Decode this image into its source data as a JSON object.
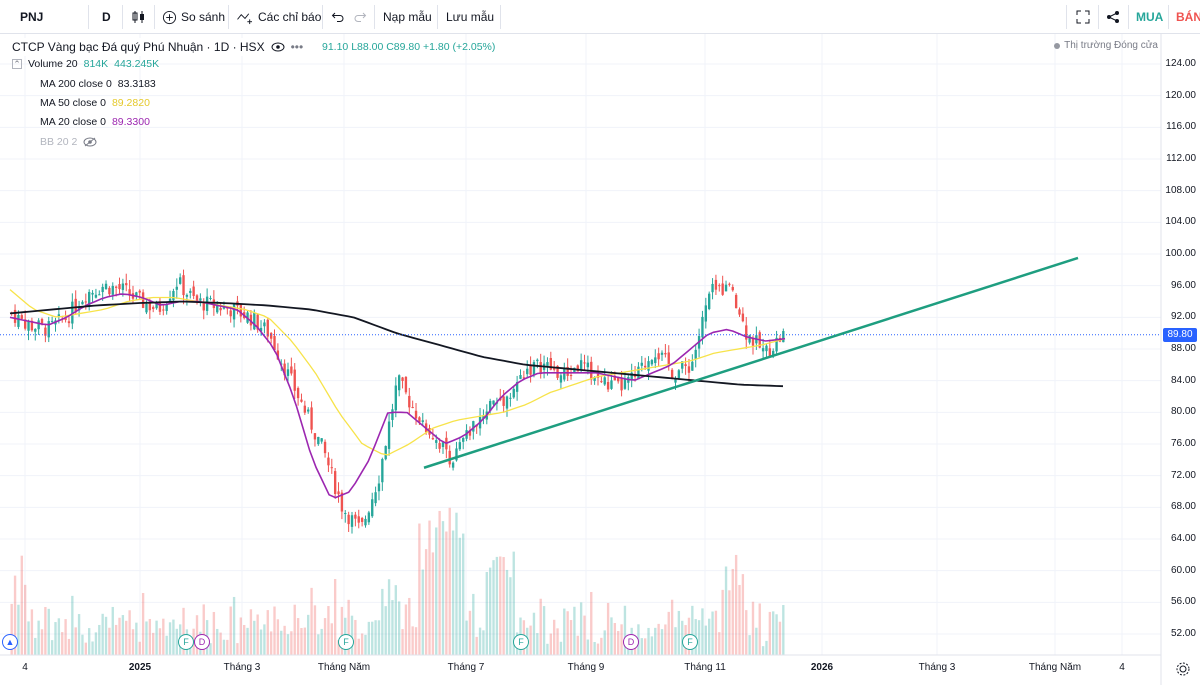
{
  "toolbar": {
    "symbol": "PNJ",
    "interval": "D",
    "compare_label": "So sánh",
    "indicators_label": "Các chỉ báo",
    "load_template_label": "Nạp mẫu",
    "save_template_label": "Lưu mẫu",
    "buy_label": "MUA",
    "sell_label": "BÁN"
  },
  "header": {
    "title": "CTCP Vàng bạc Đá quý Phú Nhuận · 1D · HSX",
    "ohlc": "91.10  L88.00  C89.80  +1.80 (+2.05%)",
    "market_status": "Thị trường Đóng cửa"
  },
  "legend": [
    {
      "label": "Volume 20",
      "value1": "814K",
      "value2": "443.245K",
      "color": "#26a69a"
    },
    {
      "label": "MA 200 close 0",
      "value1": "83.3183",
      "value2": "",
      "color": "#131722"
    },
    {
      "label": "MA 50 close 0",
      "value1": "89.2820",
      "value2": "",
      "color": "#f7e34a"
    },
    {
      "label": "MA 20 close 0",
      "value1": "89.3300",
      "value2": "",
      "color": "#9c27b0"
    },
    {
      "label": "BB 20 2",
      "value1": "",
      "value2": "",
      "color": "#b2b5be"
    }
  ],
  "colors": {
    "up": "#26a69a",
    "down": "#ef5350",
    "ma200": "#131722",
    "ma50": "#f7e34a",
    "ma20": "#9c27b0",
    "trendline": "#1e9e80",
    "price_line": "#2962ff"
  },
  "chart_data": {
    "type": "candlestick",
    "symbol": "PNJ",
    "last_price": "89.80",
    "yaxis_ticks": [
      "124.00",
      "120.00",
      "116.00",
      "112.00",
      "108.00",
      "104.00",
      "100.00",
      "96.00",
      "92.00",
      "88.00",
      "84.00",
      "80.00",
      "76.00",
      "72.00",
      "68.00",
      "64.00",
      "60.00",
      "56.00",
      "52.00"
    ],
    "xaxis_ticks": [
      "4",
      "2025",
      "Tháng 3",
      "Tháng Năm",
      "Tháng 7",
      "Tháng 9",
      "Tháng 11",
      "2026",
      "Tháng 3",
      "Tháng Năm",
      "4"
    ],
    "ylim": [
      50,
      126
    ],
    "price_path": [
      92.5,
      91,
      90.5,
      92,
      95,
      96,
      95.5,
      94,
      93,
      96.5,
      94,
      93.5,
      93,
      92,
      90,
      85,
      80,
      75,
      68,
      65,
      72,
      84,
      80,
      77,
      74,
      78,
      81,
      82,
      85.5,
      86,
      84.5,
      86,
      84,
      83,
      84.5,
      88,
      85,
      86,
      95,
      96,
      90,
      87.5,
      89.8
    ],
    "ma20_path": [
      92,
      91.5,
      91,
      92,
      93.5,
      94.5,
      95,
      94.5,
      93.5,
      94,
      94,
      93.5,
      93,
      91,
      88,
      82,
      74,
      69,
      70,
      74,
      80,
      80,
      78,
      76,
      77,
      79,
      82,
      84,
      85,
      85,
      85,
      85,
      84.5,
      84,
      85,
      86,
      88,
      90,
      90.5,
      89.5,
      89,
      89.3
    ],
    "ma50_path": [
      95.5,
      93,
      92,
      92.5,
      93,
      94,
      94.5,
      94.5,
      94,
      93.5,
      93,
      92,
      89,
      85,
      80,
      76,
      74.5,
      76,
      78,
      79,
      79.5,
      80,
      81,
      82.5,
      83.5,
      84.5,
      85,
      85.5,
      86,
      86.5,
      87.5,
      88,
      88.5,
      89.3
    ],
    "ma200_path": [
      92.5,
      93,
      93.5,
      93.8,
      94,
      93.8,
      93.5,
      93,
      92,
      90,
      88.5,
      87,
      86,
      85.5,
      85,
      84.5,
      84,
      83.5,
      83.3
    ],
    "trendline": {
      "from_price": 73,
      "to_price": 99.5
    },
    "events": [
      "F",
      "D",
      "F",
      "F",
      "D",
      "F"
    ]
  }
}
